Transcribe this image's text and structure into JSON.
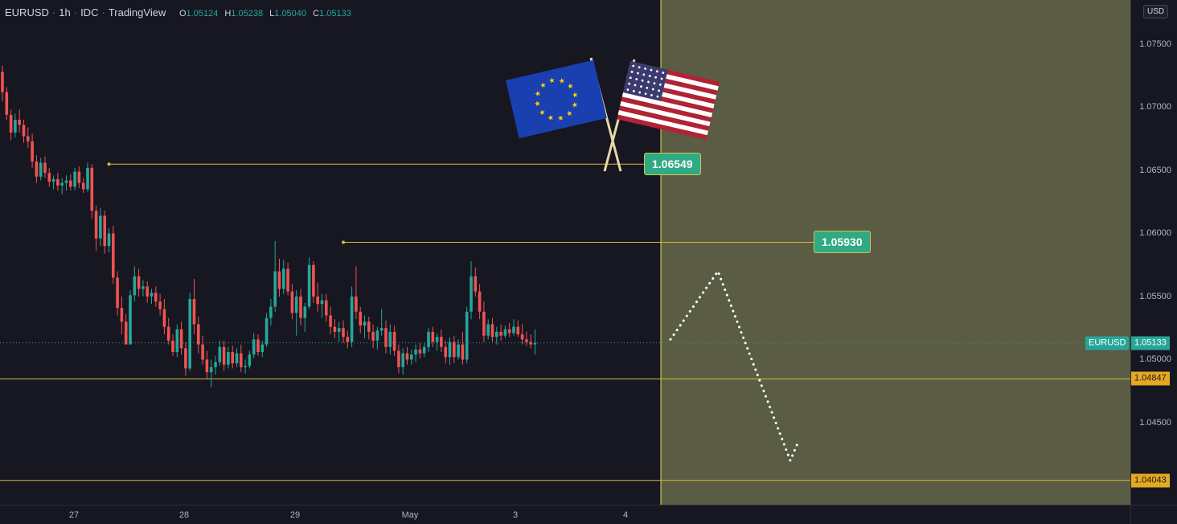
{
  "header": {
    "symbol": "EURUSD",
    "interval": "1h",
    "exchange": "IDC",
    "source": "TradingView",
    "ohlc": [
      {
        "key": "O",
        "value": "1.05124"
      },
      {
        "key": "H",
        "value": "1.05238"
      },
      {
        "key": "L",
        "value": "1.05040"
      },
      {
        "key": "C",
        "value": "1.05133"
      }
    ]
  },
  "currency_button": "USD",
  "colors": {
    "up": "#26a69a",
    "down": "#ef5350",
    "level": "#d4b93a",
    "zone": "#5a5c43",
    "background": "#171722"
  },
  "flags": [
    "eu-flag-icon",
    "us-flag-icon"
  ],
  "chart_data": {
    "type": "candlestick",
    "x_labels": [
      "27",
      "28",
      "29",
      "May",
      "3",
      "4"
    ],
    "y_ticks": [
      "1.07500",
      "1.07000",
      "1.06500",
      "1.06000",
      "1.05500",
      "1.05000",
      "1.04500"
    ],
    "ylim": [
      1.0385,
      1.0785
    ],
    "current_price": {
      "symbol": "EURUSD",
      "value": "1.05133"
    },
    "horizontal_levels": [
      "1.04847",
      "1.04043"
    ],
    "highlighted_levels": [
      {
        "value": "1.06549",
        "label": "1.06549"
      },
      {
        "value": "1.05930",
        "label": "1.05930"
      }
    ],
    "forecast_path": [
      1.0516,
      1.057,
      1.042,
      1.0435
    ],
    "candles": [
      [
        1.0728,
        1.0733,
        1.0705,
        1.0712
      ],
      [
        1.0712,
        1.0716,
        1.069,
        1.0694
      ],
      [
        1.0694,
        1.0698,
        1.0674,
        1.068
      ],
      [
        1.068,
        1.0695,
        1.0676,
        1.069
      ],
      [
        1.069,
        1.0698,
        1.068,
        1.0686
      ],
      [
        1.0686,
        1.069,
        1.0672,
        1.0677
      ],
      [
        1.0677,
        1.0684,
        1.0668,
        1.0673
      ],
      [
        1.0673,
        1.0679,
        1.0652,
        1.0657
      ],
      [
        1.0657,
        1.0662,
        1.064,
        1.0645
      ],
      [
        1.0645,
        1.066,
        1.0642,
        1.0656
      ],
      [
        1.0656,
        1.0661,
        1.0644,
        1.0648
      ],
      [
        1.0648,
        1.0652,
        1.0637,
        1.0641
      ],
      [
        1.0641,
        1.0646,
        1.0635,
        1.0643
      ],
      [
        1.0643,
        1.0648,
        1.0634,
        1.0638
      ],
      [
        1.0638,
        1.0644,
        1.0631,
        1.064
      ],
      [
        1.064,
        1.0646,
        1.0634,
        1.0642
      ],
      [
        1.0642,
        1.0647,
        1.0634,
        1.0637
      ],
      [
        1.0637,
        1.0652,
        1.0634,
        1.0649
      ],
      [
        1.0649,
        1.0653,
        1.0636,
        1.064
      ],
      [
        1.064,
        1.0644,
        1.0632,
        1.0635
      ],
      [
        1.0635,
        1.0656,
        1.0633,
        1.0652
      ],
      [
        1.0652,
        1.0655,
        1.0612,
        1.0618
      ],
      [
        1.0618,
        1.0622,
        1.0586,
        1.0596
      ],
      [
        1.0596,
        1.062,
        1.059,
        1.0614
      ],
      [
        1.0614,
        1.0618,
        1.0584,
        1.059
      ],
      [
        1.059,
        1.0604,
        1.0585,
        1.06
      ],
      [
        1.06,
        1.0606,
        1.056,
        1.0565
      ],
      [
        1.0565,
        1.057,
        1.0535,
        1.0541
      ],
      [
        1.0541,
        1.055,
        1.052,
        1.053
      ],
      [
        1.053,
        1.0536,
        1.0512,
        1.0512
      ],
      [
        1.0512,
        1.0555,
        1.0512,
        1.0551
      ],
      [
        1.0551,
        1.0574,
        1.0546,
        1.0566
      ],
      [
        1.0566,
        1.0572,
        1.055,
        1.0556
      ],
      [
        1.0556,
        1.0563,
        1.055,
        1.0558
      ],
      [
        1.0558,
        1.0562,
        1.0545,
        1.055
      ],
      [
        1.055,
        1.0556,
        1.0544,
        1.0553
      ],
      [
        1.0553,
        1.0558,
        1.0542,
        1.0546
      ],
      [
        1.0546,
        1.0552,
        1.0535,
        1.054
      ],
      [
        1.054,
        1.0548,
        1.052,
        1.0526
      ],
      [
        1.0526,
        1.0533,
        1.0512,
        1.0515
      ],
      [
        1.0515,
        1.052,
        1.0503,
        1.0506
      ],
      [
        1.0506,
        1.0528,
        1.0502,
        1.0524
      ],
      [
        1.0524,
        1.053,
        1.0504,
        1.0509
      ],
      [
        1.0509,
        1.0514,
        1.0487,
        1.0493
      ],
      [
        1.0493,
        1.0553,
        1.0491,
        1.0548
      ],
      [
        1.0548,
        1.0564,
        1.052,
        1.0528
      ],
      [
        1.0528,
        1.0534,
        1.0505,
        1.0512
      ],
      [
        1.0512,
        1.0519,
        1.0496,
        1.05
      ],
      [
        1.05,
        1.0507,
        1.0485,
        1.049
      ],
      [
        1.049,
        1.05,
        1.0478,
        1.0494
      ],
      [
        1.0494,
        1.0503,
        1.0488,
        1.0498
      ],
      [
        1.0498,
        1.0515,
        1.0495,
        1.051
      ],
      [
        1.051,
        1.0515,
        1.0491,
        1.0496
      ],
      [
        1.0496,
        1.051,
        1.0493,
        1.0506
      ],
      [
        1.0506,
        1.0511,
        1.0493,
        1.0497
      ],
      [
        1.0497,
        1.0509,
        1.0494,
        1.0505
      ],
      [
        1.0505,
        1.0512,
        1.049,
        1.0494
      ],
      [
        1.0494,
        1.05,
        1.0489,
        1.0495
      ],
      [
        1.0495,
        1.0507,
        1.0493,
        1.0504
      ],
      [
        1.0504,
        1.0521,
        1.0501,
        1.0516
      ],
      [
        1.0516,
        1.052,
        1.0503,
        1.0506
      ],
      [
        1.0506,
        1.0515,
        1.0502,
        1.0512
      ],
      [
        1.0512,
        1.0537,
        1.051,
        1.0533
      ],
      [
        1.0533,
        1.0548,
        1.0527,
        1.0542
      ],
      [
        1.0542,
        1.0594,
        1.0538,
        1.057
      ],
      [
        1.057,
        1.058,
        1.055,
        1.0556
      ],
      [
        1.0556,
        1.0579,
        1.0552,
        1.0572
      ],
      [
        1.0572,
        1.0577,
        1.0551,
        1.0554
      ],
      [
        1.0554,
        1.056,
        1.0532,
        1.0537
      ],
      [
        1.0537,
        1.0555,
        1.0519,
        1.055
      ],
      [
        1.055,
        1.0556,
        1.0527,
        1.0533
      ],
      [
        1.0533,
        1.0545,
        1.0522,
        1.0542
      ],
      [
        1.0542,
        1.0581,
        1.054,
        1.0575
      ],
      [
        1.0575,
        1.0578,
        1.0545,
        1.055
      ],
      [
        1.055,
        1.0561,
        1.0538,
        1.0544
      ],
      [
        1.0544,
        1.0552,
        1.0533,
        1.0547
      ],
      [
        1.0547,
        1.0552,
        1.053,
        1.0535
      ],
      [
        1.0535,
        1.0542,
        1.052,
        1.0526
      ],
      [
        1.0526,
        1.0532,
        1.0517,
        1.0522
      ],
      [
        1.0522,
        1.053,
        1.0514,
        1.0525
      ],
      [
        1.0525,
        1.0531,
        1.0513,
        1.0518
      ],
      [
        1.0518,
        1.0523,
        1.0509,
        1.0514
      ],
      [
        1.0514,
        1.0558,
        1.051,
        1.055
      ],
      [
        1.055,
        1.0574,
        1.0532,
        1.0538
      ],
      [
        1.0538,
        1.0542,
        1.0521,
        1.0527
      ],
      [
        1.0527,
        1.0535,
        1.0517,
        1.053
      ],
      [
        1.053,
        1.0534,
        1.0516,
        1.0522
      ],
      [
        1.0522,
        1.0528,
        1.0509,
        1.0515
      ],
      [
        1.0515,
        1.0526,
        1.0508,
        1.0523
      ],
      [
        1.0523,
        1.054,
        1.0519,
        1.0525
      ],
      [
        1.0525,
        1.0531,
        1.0505,
        1.051
      ],
      [
        1.051,
        1.0528,
        1.0504,
        1.0522
      ],
      [
        1.0522,
        1.0527,
        1.0503,
        1.0507
      ],
      [
        1.0507,
        1.0512,
        1.0489,
        1.0494
      ],
      [
        1.0494,
        1.0509,
        1.0488,
        1.0505
      ],
      [
        1.0505,
        1.051,
        1.0496,
        1.05
      ],
      [
        1.05,
        1.0508,
        1.0496,
        1.0504
      ],
      [
        1.0504,
        1.0512,
        1.0498,
        1.0508
      ],
      [
        1.0508,
        1.0513,
        1.0501,
        1.0505
      ],
      [
        1.0505,
        1.0513,
        1.0502,
        1.051
      ],
      [
        1.051,
        1.0525,
        1.0506,
        1.0522
      ],
      [
        1.0522,
        1.0526,
        1.051,
        1.0514
      ],
      [
        1.0514,
        1.0521,
        1.0507,
        1.0518
      ],
      [
        1.0518,
        1.0524,
        1.0506,
        1.051
      ],
      [
        1.051,
        1.0515,
        1.0497,
        1.0502
      ],
      [
        1.0502,
        1.0518,
        1.0496,
        1.0514
      ],
      [
        1.0514,
        1.0519,
        1.0497,
        1.0502
      ],
      [
        1.0502,
        1.0516,
        1.05,
        1.0512
      ],
      [
        1.0512,
        1.0522,
        1.0496,
        1.05
      ],
      [
        1.05,
        1.0542,
        1.0497,
        1.0538
      ],
      [
        1.0538,
        1.0578,
        1.0532,
        1.0566
      ],
      [
        1.0566,
        1.0573,
        1.055,
        1.0554
      ],
      [
        1.0554,
        1.056,
        1.0532,
        1.0538
      ],
      [
        1.0538,
        1.0546,
        1.0514,
        1.0519
      ],
      [
        1.0519,
        1.0532,
        1.0516,
        1.0528
      ],
      [
        1.0528,
        1.0533,
        1.0514,
        1.0518
      ],
      [
        1.0518,
        1.0526,
        1.0512,
        1.0522
      ],
      [
        1.0522,
        1.0528,
        1.0515,
        1.0519
      ],
      [
        1.0519,
        1.0527,
        1.0517,
        1.0524
      ],
      [
        1.0524,
        1.0529,
        1.0518,
        1.0521
      ],
      [
        1.0521,
        1.0532,
        1.0519,
        1.0526
      ],
      [
        1.0526,
        1.0531,
        1.0518,
        1.052
      ],
      [
        1.052,
        1.0528,
        1.0512,
        1.0516
      ],
      [
        1.0516,
        1.0522,
        1.0511,
        1.0514
      ],
      [
        1.0514,
        1.052,
        1.0509,
        1.0512
      ],
      [
        1.0512,
        1.0524,
        1.0504,
        1.0513
      ]
    ]
  }
}
